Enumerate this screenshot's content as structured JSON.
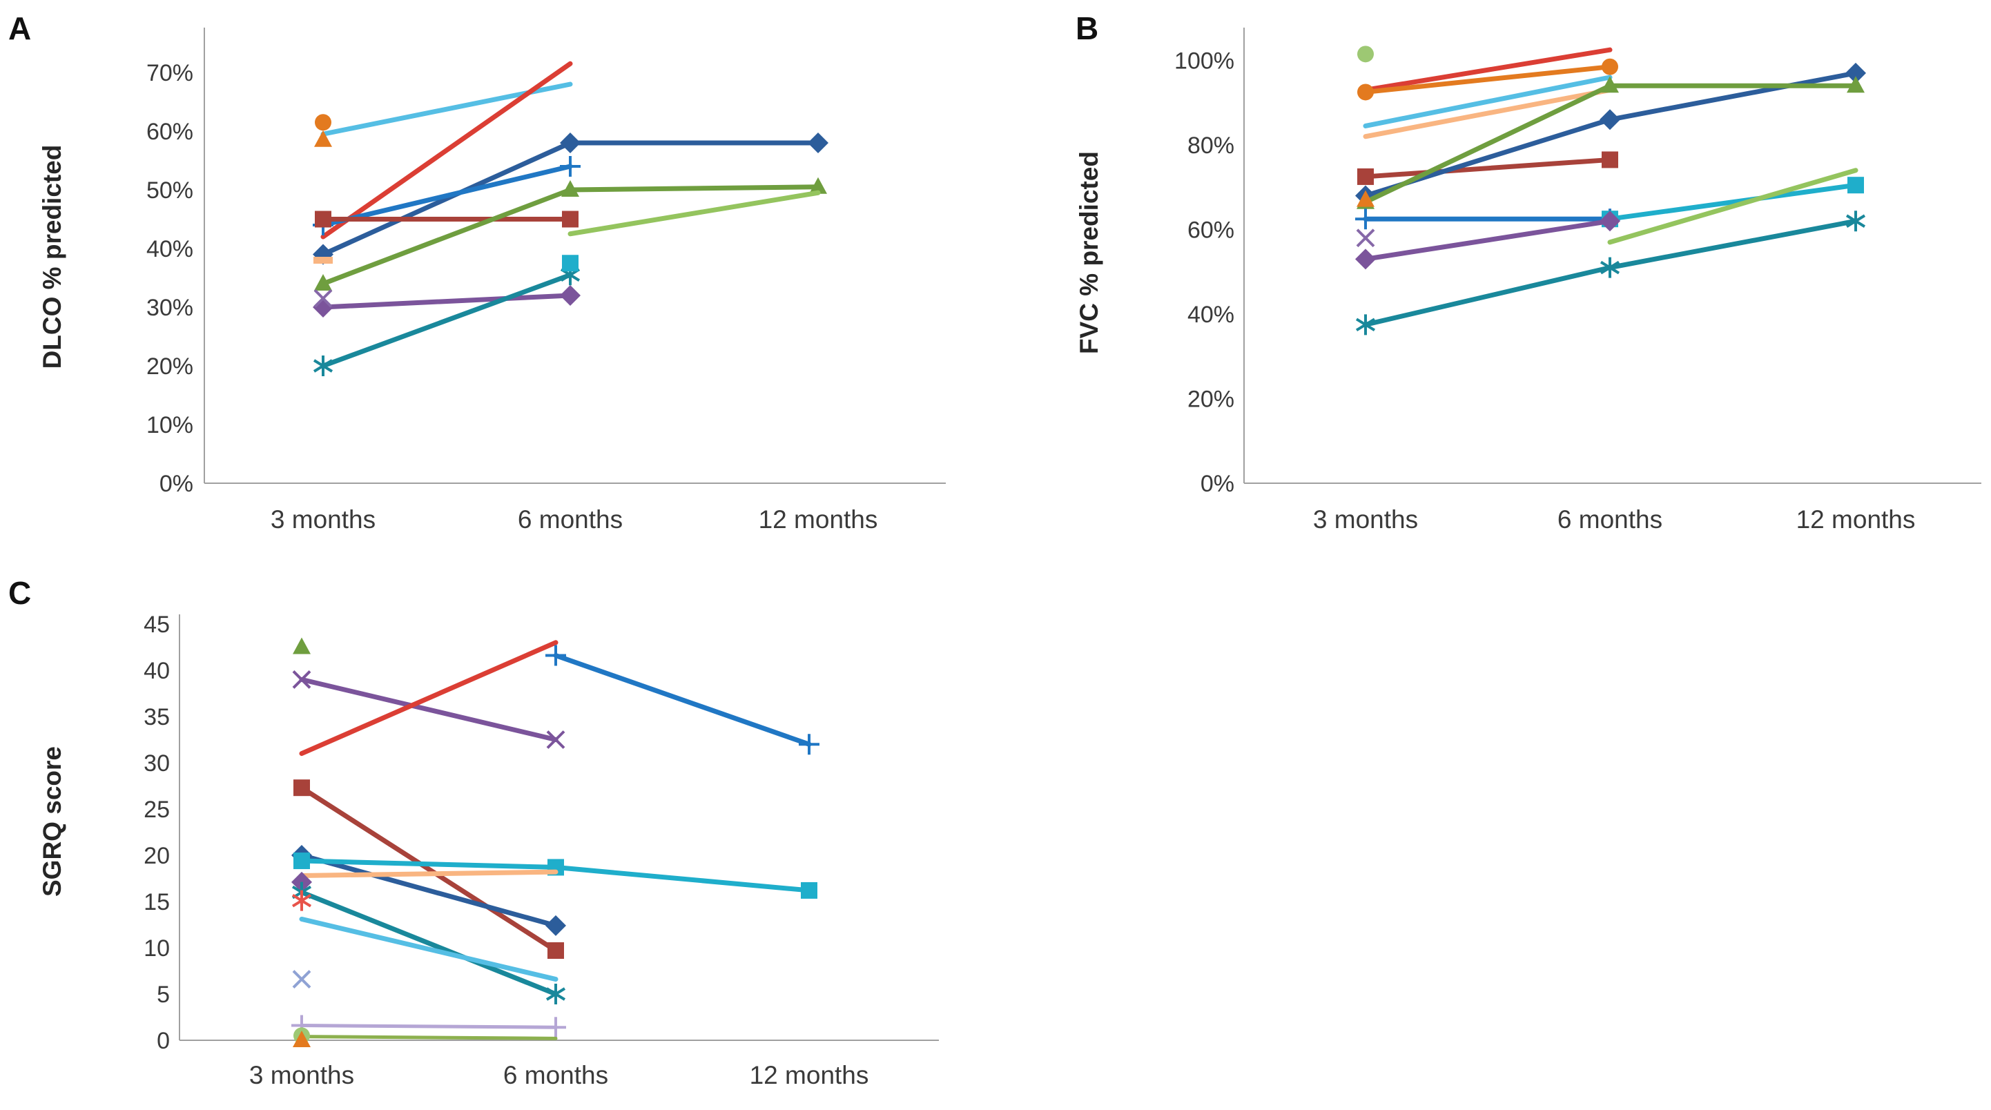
{
  "page": {
    "background": "#FFFFFF",
    "axis_color": "#A0A0A0",
    "text_color": "#3A3A3A"
  },
  "panels": [
    {
      "id": "A",
      "label": "A",
      "y_axis_title": "DLCO % predicted"
    },
    {
      "id": "B",
      "label": "B",
      "y_axis_title": "FVC % predicted"
    },
    {
      "id": "C",
      "label": "C",
      "y_axis_title": "SGRQ score"
    }
  ],
  "chart_data": [
    {
      "id": "A",
      "type": "line",
      "title": "",
      "xlabel": "",
      "ylabel": "DLCO % predicted",
      "categories": [
        "3 months",
        "6 months",
        "12 months"
      ],
      "ylim": [
        0,
        70
      ],
      "grid": false,
      "legend": "none",
      "yticks": [
        {
          "value": 70,
          "label": "70%"
        },
        {
          "value": 60,
          "label": "60%"
        },
        {
          "value": 50,
          "label": "50%"
        },
        {
          "value": 40,
          "label": "40%"
        },
        {
          "value": 30,
          "label": "30%"
        },
        {
          "value": 20,
          "label": "20%"
        },
        {
          "value": 10,
          "label": "10%"
        },
        {
          "value": 0,
          "label": "0%"
        }
      ],
      "series": [
        {
          "name": "sky-blue-line",
          "color": "#55BEE4",
          "marker": "none",
          "values": [
            59.5,
            68,
            null
          ]
        },
        {
          "name": "bright-red-line",
          "color": "#DB3E34",
          "marker": "none",
          "values": [
            42,
            71.5,
            null
          ]
        },
        {
          "name": "navy-diamond",
          "color": "#2C5D9B",
          "marker": "diamond",
          "values": [
            39,
            58,
            58
          ]
        },
        {
          "name": "blue-plus",
          "color": "#2077C4",
          "marker": "plus",
          "values": [
            44,
            54,
            null
          ]
        },
        {
          "name": "brick-square",
          "color": "#A8423A",
          "marker": "square",
          "values": [
            45,
            45,
            null
          ]
        },
        {
          "name": "green-triangle",
          "color": "#6F9E3F",
          "marker": "triangle",
          "values": [
            34,
            50,
            50.5
          ]
        },
        {
          "name": "light-green-line",
          "color": "#94C45E",
          "marker": "none",
          "values": [
            null,
            42.5,
            49.5
          ]
        },
        {
          "name": "purple-diamond",
          "color": "#7B549B",
          "marker": "diamond",
          "values": [
            30,
            32,
            null
          ]
        },
        {
          "name": "purple-x",
          "color": "#8668A8",
          "marker": "x",
          "values": [
            31.5,
            null,
            null
          ]
        },
        {
          "name": "teal-asterisk",
          "color": "#19889B",
          "marker": "asterisk",
          "values": [
            20,
            35.5,
            null
          ]
        },
        {
          "name": "cyan-square",
          "color": "#1FAECB",
          "marker": "square",
          "values": [
            null,
            37.5,
            null
          ]
        },
        {
          "name": "peach-dash",
          "color": "#F9B581",
          "marker": "dash",
          "values": [
            38,
            null,
            null
          ]
        },
        {
          "name": "orange-circle",
          "color": "#E37A1F",
          "marker": "circle",
          "values": [
            61.5,
            null,
            null
          ]
        },
        {
          "name": "orange-triangle",
          "color": "#E37A1F",
          "marker": "triangle",
          "values": [
            58.5,
            null,
            null
          ]
        }
      ]
    },
    {
      "id": "B",
      "type": "line",
      "title": "",
      "xlabel": "",
      "ylabel": "FVC % predicted",
      "categories": [
        "3 months",
        "6 months",
        "12 months"
      ],
      "ylim": [
        0,
        100
      ],
      "grid": false,
      "legend": "none",
      "yticks": [
        {
          "value": 100,
          "label": "100%"
        },
        {
          "value": 80,
          "label": "80%"
        },
        {
          "value": 60,
          "label": "60%"
        },
        {
          "value": 40,
          "label": "40%"
        },
        {
          "value": 20,
          "label": "20%"
        },
        {
          "value": 0,
          "label": "0%"
        }
      ],
      "series": [
        {
          "name": "bright-red-line",
          "color": "#DB3E34",
          "marker": "none",
          "values": [
            93,
            102.5,
            null
          ]
        },
        {
          "name": "orange-circle",
          "color": "#E37A1F",
          "marker": "circle",
          "values": [
            92.5,
            98.5,
            null
          ]
        },
        {
          "name": "light-green-circle",
          "color": "#9DC873",
          "marker": "circle",
          "values": [
            101.5,
            null,
            null
          ]
        },
        {
          "name": "sky-blue-line",
          "color": "#55BEE4",
          "marker": "none",
          "values": [
            84.5,
            96,
            null
          ]
        },
        {
          "name": "peach-line",
          "color": "#F9B581",
          "marker": "none",
          "values": [
            82,
            93,
            null
          ]
        },
        {
          "name": "brick-square",
          "color": "#A8423A",
          "marker": "square",
          "values": [
            72.5,
            76.5,
            null
          ]
        },
        {
          "name": "navy-diamond",
          "color": "#2C5D9B",
          "marker": "diamond",
          "values": [
            68,
            86,
            97
          ]
        },
        {
          "name": "green-triangle",
          "color": "#6F9E3F",
          "marker": "triangle",
          "values": [
            66.5,
            94,
            94
          ]
        },
        {
          "name": "orange-triangle",
          "color": "#E37A1F",
          "marker": "triangle",
          "values": [
            67,
            null,
            null
          ]
        },
        {
          "name": "blue-plus",
          "color": "#2077C4",
          "marker": "plus",
          "values": [
            62.5,
            62.5,
            null
          ]
        },
        {
          "name": "cyan-square",
          "color": "#1FAECB",
          "marker": "square",
          "values": [
            null,
            62.5,
            70.5
          ]
        },
        {
          "name": "purple-x",
          "color": "#8668A8",
          "marker": "x",
          "values": [
            58,
            null,
            null
          ]
        },
        {
          "name": "purple-diamond",
          "color": "#7B549B",
          "marker": "diamond",
          "values": [
            53,
            62,
            null
          ]
        },
        {
          "name": "teal-asterisk",
          "color": "#19889B",
          "marker": "asterisk",
          "values": [
            37.5,
            51,
            62
          ]
        },
        {
          "name": "light-green-line",
          "color": "#94C45E",
          "marker": "none",
          "values": [
            null,
            57,
            74
          ]
        }
      ]
    },
    {
      "id": "C",
      "type": "line",
      "title": "",
      "xlabel": "",
      "ylabel": "SGRQ score",
      "categories": [
        "3 months",
        "6 months",
        "12 months"
      ],
      "ylim": [
        0,
        45
      ],
      "grid": false,
      "legend": "none",
      "yticks": [
        {
          "value": 45,
          "label": "45"
        },
        {
          "value": 40,
          "label": "40"
        },
        {
          "value": 35,
          "label": "35"
        },
        {
          "value": 30,
          "label": "30"
        },
        {
          "value": 25,
          "label": "25"
        },
        {
          "value": 20,
          "label": "20"
        },
        {
          "value": 15,
          "label": "15"
        },
        {
          "value": 10,
          "label": "10"
        },
        {
          "value": 5,
          "label": "5"
        },
        {
          "value": 0,
          "label": "0"
        }
      ],
      "series": [
        {
          "name": "green-triangle",
          "color": "#6F9E3F",
          "marker": "triangle",
          "values": [
            42.5,
            null,
            null
          ]
        },
        {
          "name": "purple-x-line",
          "color": "#7B549B",
          "marker": "x",
          "values": [
            39,
            32.5,
            null
          ]
        },
        {
          "name": "bright-red-line",
          "color": "#DB3E34",
          "marker": "none",
          "values": [
            31,
            43,
            null
          ]
        },
        {
          "name": "blue-plus-line",
          "color": "#2077C4",
          "marker": "plus",
          "values": [
            null,
            41.6,
            32
          ]
        },
        {
          "name": "brick-square",
          "color": "#A8423A",
          "marker": "square",
          "values": [
            27.3,
            9.7,
            null
          ]
        },
        {
          "name": "navy-diamond",
          "color": "#2C5D9B",
          "marker": "diamond",
          "values": [
            20,
            12.4,
            null
          ]
        },
        {
          "name": "cyan-square",
          "color": "#1FAECB",
          "marker": "square",
          "values": [
            19.4,
            18.7,
            16.2
          ]
        },
        {
          "name": "peach-line",
          "color": "#F9B581",
          "marker": "none",
          "values": [
            17.8,
            18.2,
            null
          ]
        },
        {
          "name": "purple-diamond",
          "color": "#7B549B",
          "marker": "diamond",
          "values": [
            17.1,
            null,
            null
          ]
        },
        {
          "name": "teal-asterisk",
          "color": "#19889B",
          "marker": "asterisk",
          "values": [
            16,
            5,
            null
          ]
        },
        {
          "name": "red-asterisk",
          "color": "#E8534A",
          "marker": "asterisk",
          "values": [
            15.1,
            null,
            null
          ]
        },
        {
          "name": "sky-blue-line",
          "color": "#55BEE4",
          "marker": "none",
          "values": [
            13.1,
            6.6,
            null
          ]
        },
        {
          "name": "lavender-x",
          "color": "#8FA2D4",
          "marker": "x",
          "values": [
            6.6,
            null,
            null
          ]
        },
        {
          "name": "lavender-plus-line",
          "color": "#B5A6D5",
          "marker": "plus",
          "values": [
            1.6,
            1.4,
            null
          ],
          "width": 5
        },
        {
          "name": "olive-line",
          "color": "#8CB04E",
          "marker": "none",
          "values": [
            0.4,
            0.2,
            null
          ],
          "width": 5
        },
        {
          "name": "light-green-circle",
          "color": "#9DC873",
          "marker": "circle",
          "values": [
            0.5,
            null,
            null
          ]
        },
        {
          "name": "orange-triangle",
          "color": "#E37A1F",
          "marker": "triangle",
          "values": [
            0,
            null,
            null
          ]
        }
      ]
    }
  ]
}
